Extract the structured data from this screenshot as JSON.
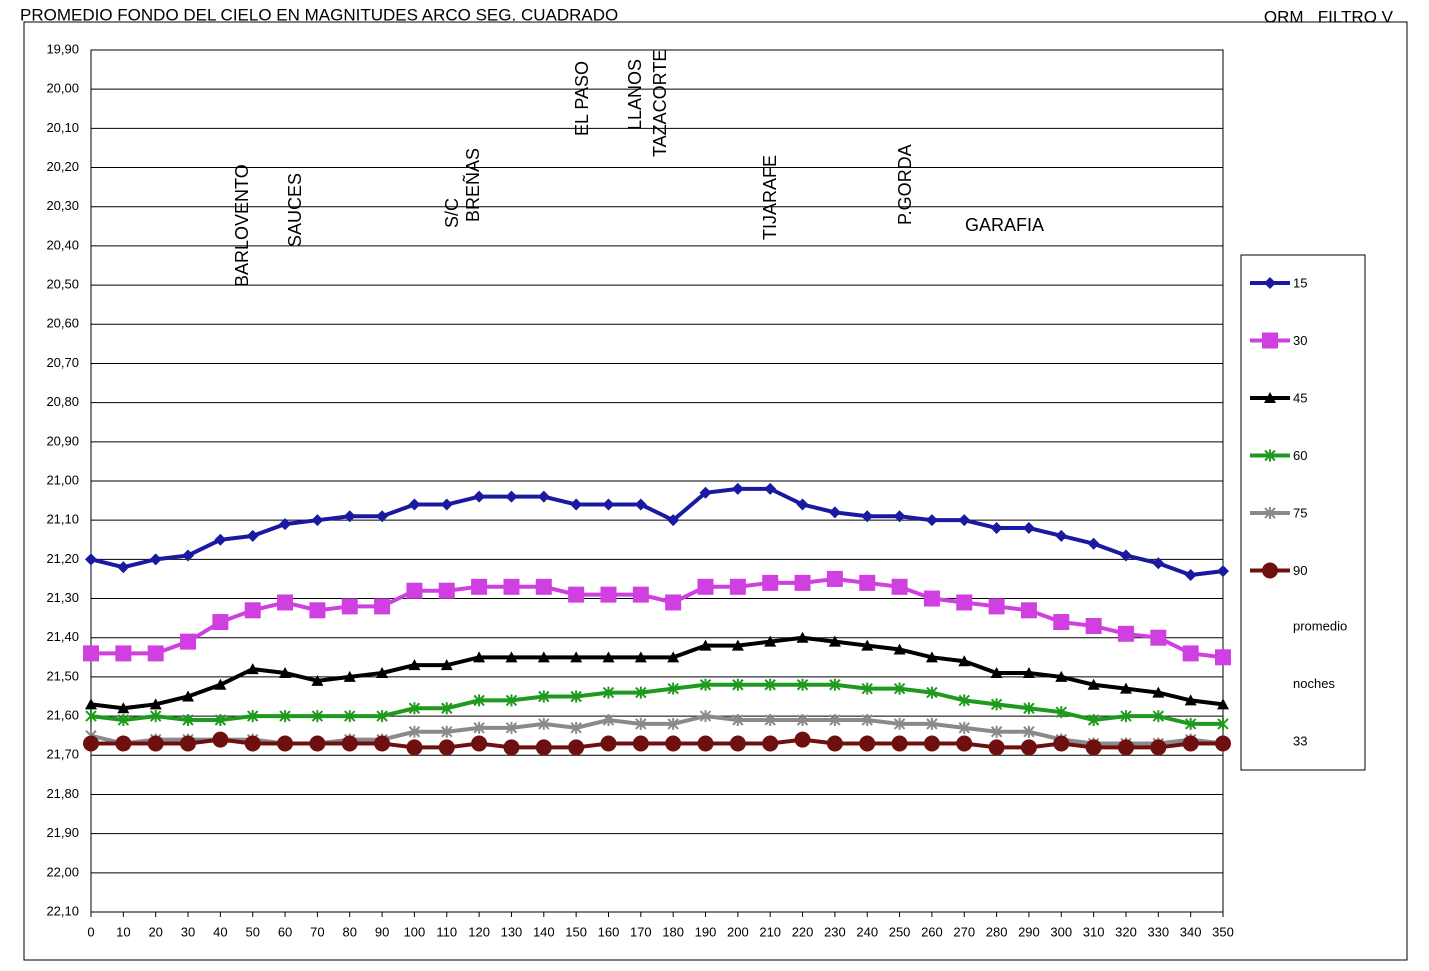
{
  "chart_data": {
    "type": "line",
    "title": "PROMEDIO FONDO DEL CIELO EN MAGNITUDES ARCO SEG. CUADRADO",
    "subtitle": "ORM   FILTRO V",
    "x": [
      0,
      10,
      20,
      30,
      40,
      50,
      60,
      70,
      80,
      90,
      100,
      110,
      120,
      130,
      140,
      150,
      160,
      170,
      180,
      190,
      200,
      210,
      220,
      230,
      240,
      250,
      260,
      270,
      280,
      290,
      300,
      310,
      320,
      330,
      340,
      350
    ],
    "xlim": [
      0,
      350
    ],
    "xticks": [
      0,
      10,
      20,
      30,
      40,
      50,
      60,
      70,
      80,
      90,
      100,
      110,
      120,
      130,
      140,
      150,
      160,
      170,
      180,
      190,
      200,
      210,
      220,
      230,
      240,
      250,
      260,
      270,
      280,
      290,
      300,
      310,
      320,
      330,
      340,
      350
    ],
    "ylim": [
      19.9,
      22.1
    ],
    "yreverse": true,
    "grid": true,
    "yticks": [
      {
        "value": 19.9,
        "label": "19,90"
      },
      {
        "value": 20.0,
        "label": "20,00"
      },
      {
        "value": 20.1,
        "label": "20,10"
      },
      {
        "value": 20.2,
        "label": "20,20"
      },
      {
        "value": 20.3,
        "label": "20,30"
      },
      {
        "value": 20.4,
        "label": "20,40"
      },
      {
        "value": 20.5,
        "label": "20,50"
      },
      {
        "value": 20.6,
        "label": "20,60"
      },
      {
        "value": 20.7,
        "label": "20,70"
      },
      {
        "value": 20.8,
        "label": "20,80"
      },
      {
        "value": 20.9,
        "label": "20,90"
      },
      {
        "value": 21.0,
        "label": "21,00"
      },
      {
        "value": 21.1,
        "label": "21,10"
      },
      {
        "value": 21.2,
        "label": "21,20"
      },
      {
        "value": 21.3,
        "label": "21,30"
      },
      {
        "value": 21.4,
        "label": "21,40"
      },
      {
        "value": 21.5,
        "label": "21,50"
      },
      {
        "value": 21.6,
        "label": "21,60"
      },
      {
        "value": 21.7,
        "label": "21,70"
      },
      {
        "value": 21.8,
        "label": "21,80"
      },
      {
        "value": 21.9,
        "label": "21,90"
      },
      {
        "value": 22.0,
        "label": "22,00"
      },
      {
        "value": 22.1,
        "label": "22,10"
      }
    ],
    "legend": "right",
    "series": [
      {
        "name": "15",
        "color": "#1a1aa0",
        "marker": "diamond",
        "values": [
          21.2,
          21.22,
          21.2,
          21.19,
          21.15,
          21.14,
          21.11,
          21.1,
          21.09,
          21.09,
          21.06,
          21.06,
          21.04,
          21.04,
          21.04,
          21.06,
          21.06,
          21.06,
          21.1,
          21.03,
          21.02,
          21.02,
          21.06,
          21.08,
          21.09,
          21.09,
          21.1,
          21.1,
          21.12,
          21.12,
          21.14,
          21.16,
          21.19,
          21.21,
          21.24,
          21.23
        ]
      },
      {
        "name": "30",
        "color": "#d040e0",
        "marker": "square",
        "values": [
          21.44,
          21.44,
          21.44,
          21.41,
          21.36,
          21.33,
          21.31,
          21.33,
          21.32,
          21.32,
          21.28,
          21.28,
          21.27,
          21.27,
          21.27,
          21.29,
          21.29,
          21.29,
          21.31,
          21.27,
          21.27,
          21.26,
          21.26,
          21.25,
          21.26,
          21.27,
          21.3,
          21.31,
          21.32,
          21.33,
          21.36,
          21.37,
          21.39,
          21.4,
          21.44,
          21.45
        ]
      },
      {
        "name": "45",
        "color": "#000000",
        "marker": "triangle",
        "values": [
          21.57,
          21.58,
          21.57,
          21.55,
          21.52,
          21.48,
          21.49,
          21.51,
          21.5,
          21.49,
          21.47,
          21.47,
          21.45,
          21.45,
          21.45,
          21.45,
          21.45,
          21.45,
          21.45,
          21.42,
          21.42,
          21.41,
          21.4,
          21.41,
          21.42,
          21.43,
          21.45,
          21.46,
          21.49,
          21.49,
          21.5,
          21.52,
          21.53,
          21.54,
          21.56,
          21.57
        ]
      },
      {
        "name": "60",
        "color": "#1e9a1e",
        "marker": "cross",
        "values": [
          21.6,
          21.61,
          21.6,
          21.61,
          21.61,
          21.6,
          21.6,
          21.6,
          21.6,
          21.6,
          21.58,
          21.58,
          21.56,
          21.56,
          21.55,
          21.55,
          21.54,
          21.54,
          21.53,
          21.52,
          21.52,
          21.52,
          21.52,
          21.52,
          21.53,
          21.53,
          21.54,
          21.56,
          21.57,
          21.58,
          21.59,
          21.61,
          21.6,
          21.6,
          21.62,
          21.62
        ]
      },
      {
        "name": "75",
        "color": "#8a8a8a",
        "marker": "cross",
        "values": [
          21.65,
          21.67,
          21.66,
          21.66,
          21.66,
          21.66,
          21.67,
          21.67,
          21.66,
          21.66,
          21.64,
          21.64,
          21.63,
          21.63,
          21.62,
          21.63,
          21.61,
          21.62,
          21.62,
          21.6,
          21.61,
          21.61,
          21.61,
          21.61,
          21.61,
          21.62,
          21.62,
          21.63,
          21.64,
          21.64,
          21.66,
          21.67,
          21.67,
          21.67,
          21.66,
          21.67
        ]
      },
      {
        "name": "90",
        "color": "#6e1010",
        "marker": "circle",
        "values": [
          21.67,
          21.67,
          21.67,
          21.67,
          21.66,
          21.67,
          21.67,
          21.67,
          21.67,
          21.67,
          21.68,
          21.68,
          21.67,
          21.68,
          21.68,
          21.68,
          21.67,
          21.67,
          21.67,
          21.67,
          21.67,
          21.67,
          21.66,
          21.67,
          21.67,
          21.67,
          21.67,
          21.67,
          21.68,
          21.68,
          21.67,
          21.68,
          21.68,
          21.68,
          21.67,
          21.67
        ]
      }
    ],
    "legend_notes": [
      "promedio",
      "noches",
      "33"
    ],
    "annotations": [
      "BARLOVENTO",
      "SAUCES",
      "S/C",
      "BREÑAS",
      "EL PASO",
      "LLANOS",
      "TAZACORTE",
      "TIJARAFE",
      "P.GORDA",
      "GARAFIA"
    ]
  }
}
